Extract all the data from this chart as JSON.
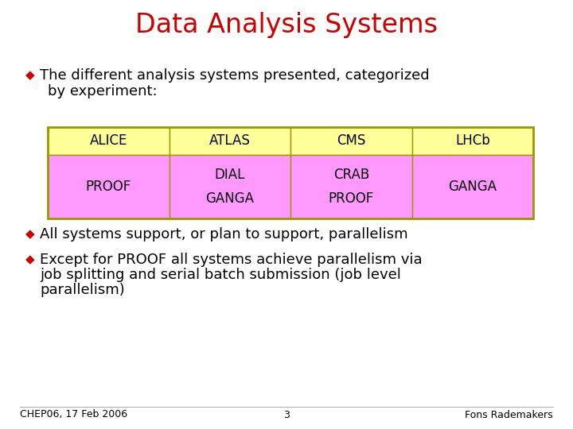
{
  "title": "Data Analysis Systems",
  "title_color": "#cc0000",
  "title_fontsize": 24,
  "background_color": "#ffffff",
  "bullet_color": "#cc0000",
  "bullet1_line1": "The different analysis systems presented, categorized",
  "bullet1_line2": "by experiment:",
  "bullet2": "All systems support, or plan to support, parallelism",
  "bullet3_line1": "Except for PROOF all systems achieve parallelism via",
  "bullet3_line2": "job splitting and serial batch submission (job level",
  "bullet3_line3": "parallelism)",
  "table_header_bg": "#ffff99",
  "table_data_bg": "#ff99ff",
  "table_border_color": "#999900",
  "table_columns": [
    "ALICE",
    "ATLAS",
    "CMS",
    "LHCb"
  ],
  "table_col1": [
    "PROOF"
  ],
  "table_col2": [
    "DIAL",
    "GANGA"
  ],
  "table_col3": [
    "CRAB",
    "PROOF"
  ],
  "table_col4": [
    "GANGA"
  ],
  "footer_left": "CHEP06, 17 Feb 2006",
  "footer_center": "3",
  "footer_right": "Fons Rademakers",
  "footer_fontsize": 9,
  "text_fontsize": 13,
  "table_fontsize": 12
}
